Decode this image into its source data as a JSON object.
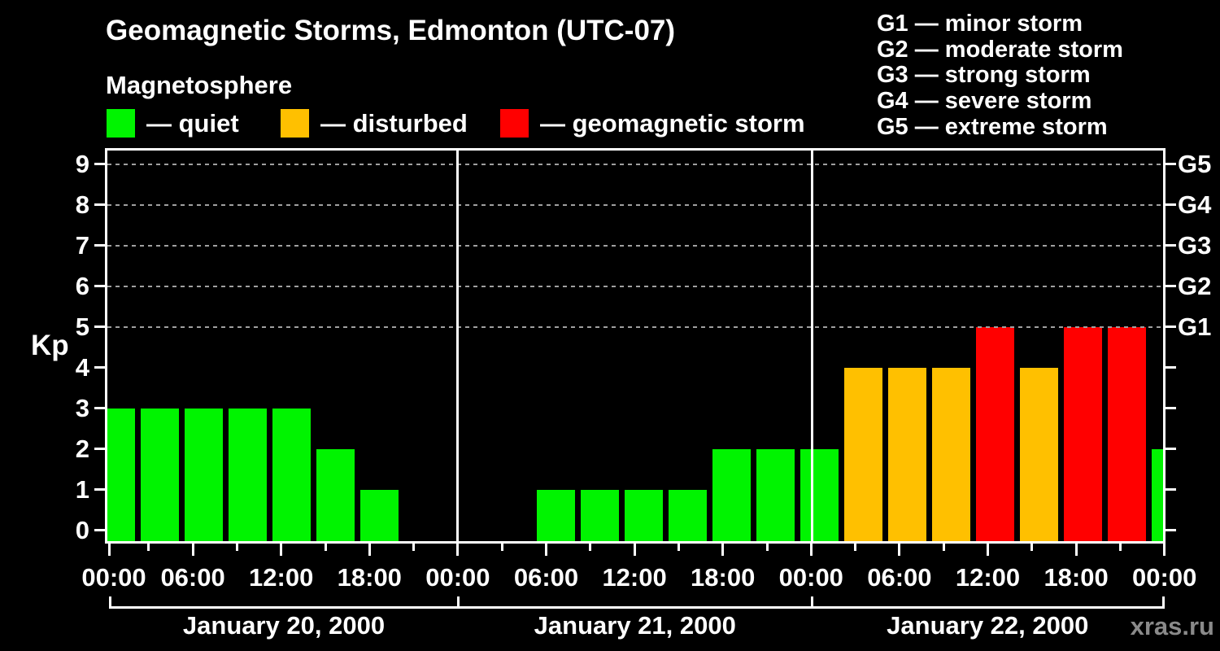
{
  "title": "Geomagnetic Storms, Edmonton (UTC-07)",
  "subtitle": "Magnetosphere",
  "legend": {
    "items": [
      {
        "name": "quiet",
        "label": "— quiet",
        "color": "#00f400"
      },
      {
        "name": "disturbed",
        "label": "— disturbed",
        "color": "#ffc000"
      },
      {
        "name": "geomagnetic-storm",
        "label": "— geomagnetic storm",
        "color": "#ff0000"
      }
    ]
  },
  "storm_scale_legend": [
    "G1 — minor storm",
    "G2 — moderate storm",
    "G3 — strong storm",
    "G4 — severe storm",
    "G5 — extreme storm"
  ],
  "watermark": "xras.ru",
  "chart_data": {
    "type": "bar",
    "title": "Geomagnetic Storms, Edmonton (UTC-07)",
    "subtitle": "Magnetosphere",
    "ylabel": "Kp",
    "ylim": [
      0,
      9
    ],
    "interval_hours": 3,
    "y_tick_labels": [
      "0",
      "1",
      "2",
      "3",
      "4",
      "5",
      "6",
      "7",
      "8",
      "9"
    ],
    "x_tick_labels": [
      "00:00",
      "06:00",
      "12:00",
      "18:00"
    ],
    "gridlines_kp": [
      5,
      6,
      7,
      8,
      9
    ],
    "g_labels": [
      {
        "label": "G1",
        "kp": 5
      },
      {
        "label": "G2",
        "kp": 6
      },
      {
        "label": "G3",
        "kp": 7
      },
      {
        "label": "G4",
        "kp": 8
      },
      {
        "label": "G5",
        "kp": 9
      }
    ],
    "colors": {
      "quiet": "#00f400",
      "disturbed": "#ffc000",
      "storm": "#ff0000"
    },
    "color_rule": {
      "quiet_kp_max": 3,
      "disturbed_kp": 4,
      "storm_kp_min": 5
    },
    "days": [
      {
        "date": "January 20, 2000",
        "kp_3h": [
          3,
          3,
          3,
          3,
          3,
          2,
          1,
          null
        ]
      },
      {
        "date": "January 21, 2000",
        "kp_3h": [
          null,
          null,
          1,
          1,
          1,
          1,
          2,
          2
        ]
      },
      {
        "date": "January 22, 2000",
        "kp_3h": [
          2,
          4,
          4,
          4,
          5,
          4,
          5,
          5
        ]
      }
    ],
    "next_day_first_value": 2,
    "legend_position": "top"
  }
}
